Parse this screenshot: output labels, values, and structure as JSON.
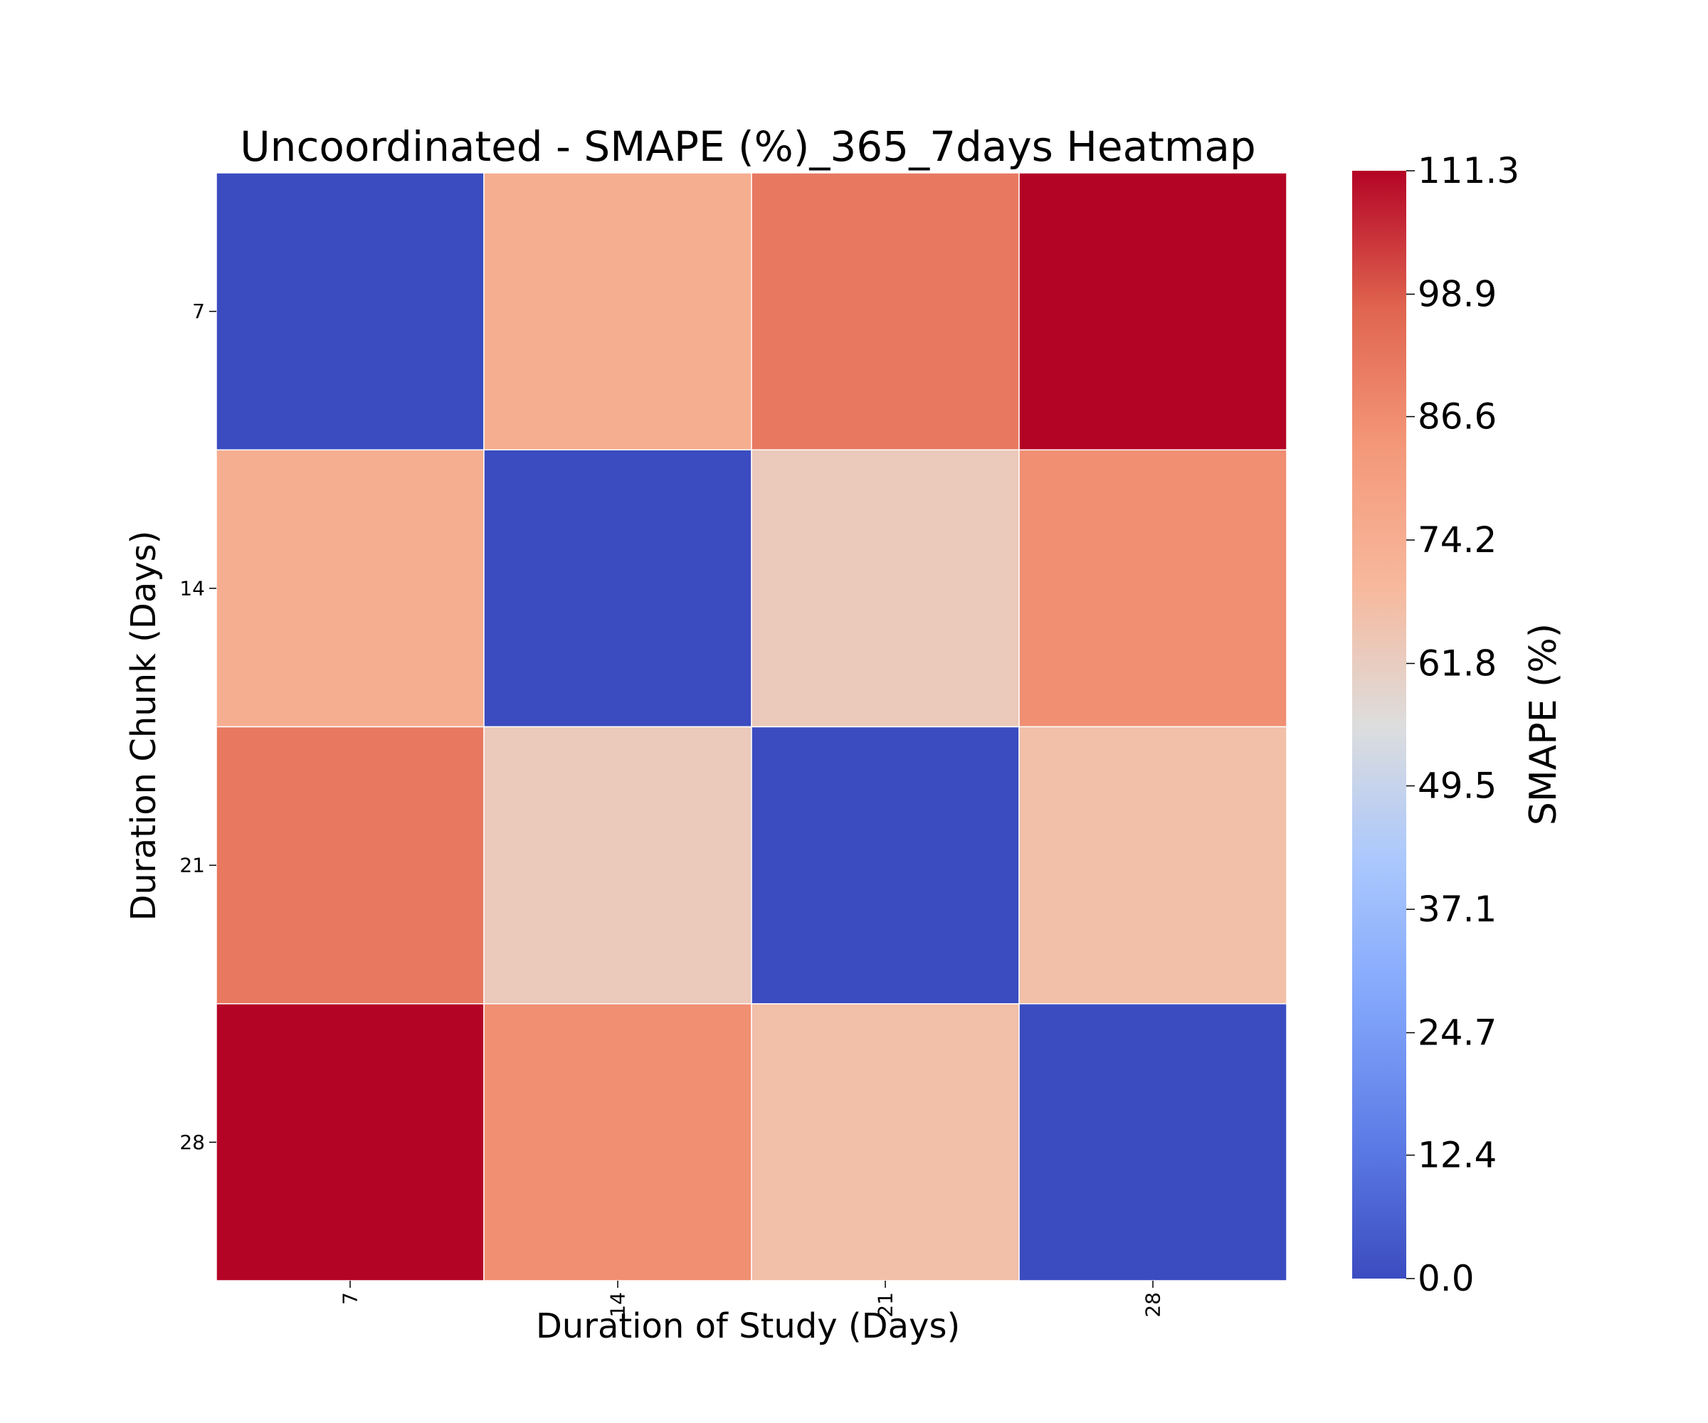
{
  "chart_data": {
    "type": "heatmap",
    "title": "Uncoordinated - SMAPE (%)_365_7days Heatmap",
    "xlabel": "Duration of Study (Days)",
    "ylabel": "Duration Chunk (Days)",
    "x_categories": [
      "7",
      "14",
      "21",
      "28"
    ],
    "y_categories": [
      "7",
      "14",
      "21",
      "28"
    ],
    "values": [
      [
        0.0,
        74.0,
        92.0,
        111.3
      ],
      [
        74.0,
        0.0,
        63.0,
        86.0
      ],
      [
        92.0,
        63.0,
        0.0,
        67.0
      ],
      [
        111.3,
        86.0,
        67.0,
        0.0
      ]
    ],
    "colormap": "coolwarm",
    "colorbar": {
      "label": "SMAPE (%)",
      "range": [
        0.0,
        111.3
      ],
      "ticks": [
        "0.0",
        "12.4",
        "24.7",
        "37.1",
        "49.5",
        "61.8",
        "74.2",
        "86.6",
        "98.9",
        "111.3"
      ]
    },
    "grid": false
  }
}
